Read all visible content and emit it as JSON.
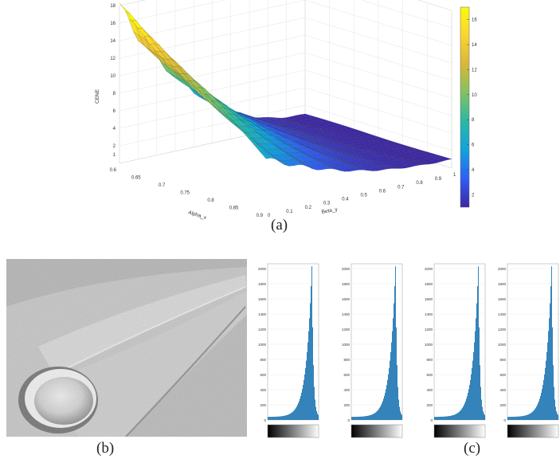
{
  "figure": {
    "captions": {
      "a": "(a)",
      "b": "(b)",
      "c": "(c)"
    }
  },
  "surface_plot": {
    "zlabel": "CENE",
    "xlabel": "Alpha_x",
    "ylabel": "Beta_y",
    "alpha_ticks": [
      "0.6",
      "0.65",
      "0.7",
      "0.75",
      "0.8",
      "0.85",
      "0.9"
    ],
    "beta_ticks": [
      "0",
      "0.1",
      "0.2",
      "0.3",
      "0.4",
      "0.5",
      "0.6",
      "0.7",
      "0.8",
      "0.9",
      "1"
    ],
    "z_ticks": [
      "1",
      "2",
      "4",
      "6",
      "8",
      "10",
      "12",
      "14",
      "16",
      "18"
    ],
    "colorbar_ticks": [
      "2",
      "4",
      "6",
      "8",
      "10",
      "12",
      "14",
      "16"
    ],
    "colormap": [
      "#3e26a8",
      "#2f5ef5",
      "#12a2dd",
      "#2ab8a5",
      "#81c261",
      "#d6b83a",
      "#fbd42f",
      "#f9fb0e"
    ]
  },
  "histograms": {
    "y_ticks": [
      "0",
      "200",
      "400",
      "600",
      "800",
      "1000",
      "1200",
      "1400",
      "1600",
      "1800",
      "2000"
    ],
    "bar_color": "#1f77b4",
    "count": 4
  }
}
